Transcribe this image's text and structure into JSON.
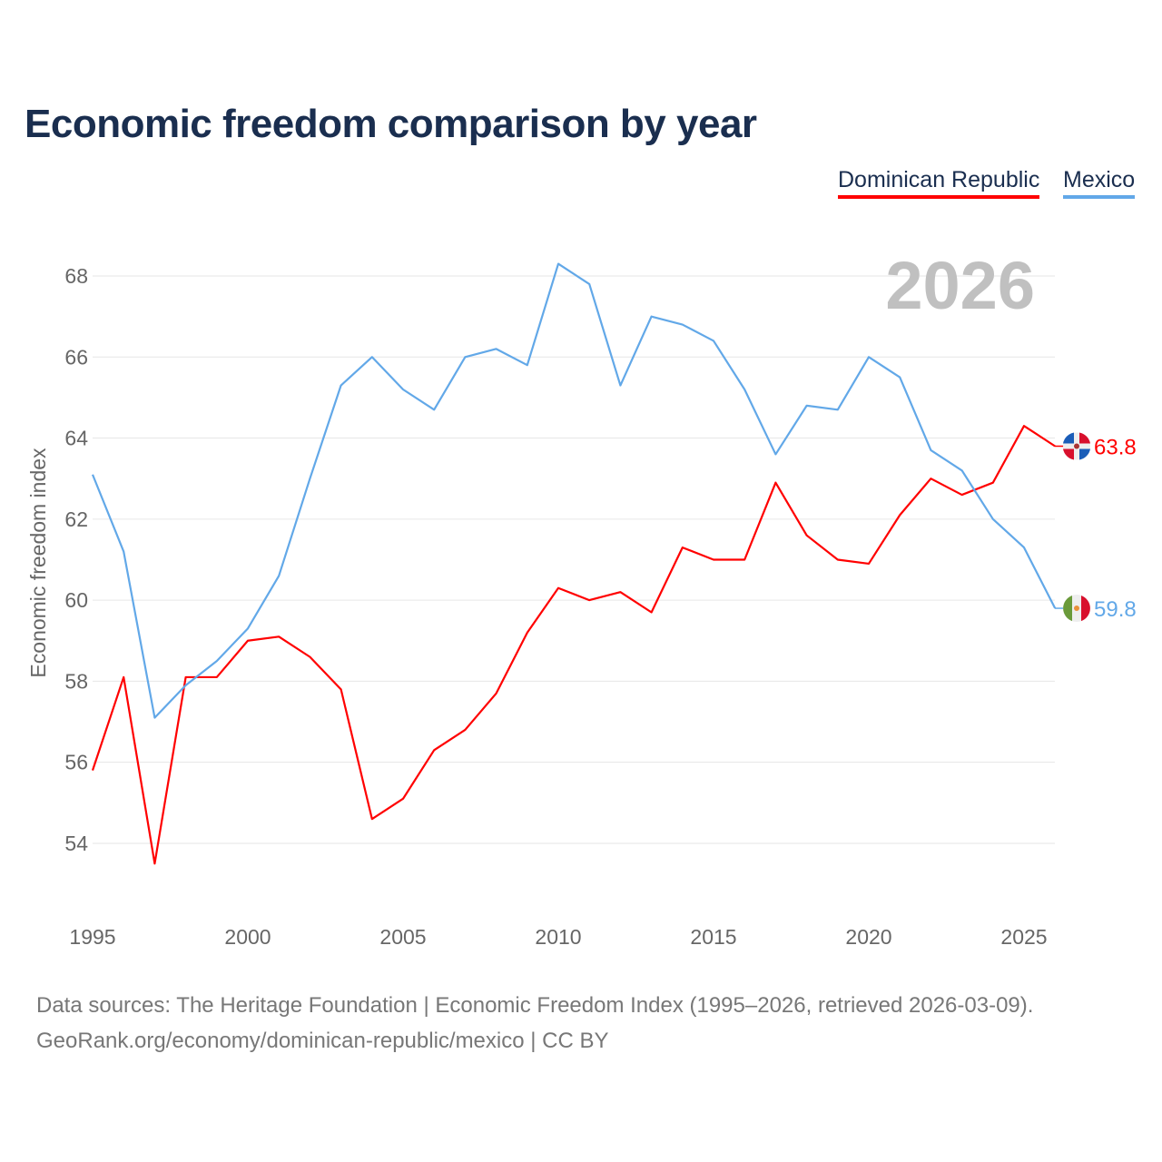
{
  "chart_data": {
    "type": "line",
    "title": "Economic freedom comparison by year",
    "ylabel": "Economic freedom index",
    "xlabel": "",
    "year_watermark": "2026",
    "ylim": [
      52.5,
      69
    ],
    "xlim": [
      1995,
      2026
    ],
    "yticks": [
      54,
      56,
      58,
      60,
      62,
      64,
      66,
      68
    ],
    "xticks": [
      1995,
      2000,
      2005,
      2010,
      2015,
      2020,
      2025
    ],
    "grid": true,
    "legend_position": "top-right",
    "x": [
      1995,
      1996,
      1997,
      1998,
      1999,
      2000,
      2001,
      2002,
      2003,
      2004,
      2005,
      2006,
      2007,
      2008,
      2009,
      2010,
      2011,
      2012,
      2013,
      2014,
      2015,
      2016,
      2017,
      2018,
      2019,
      2020,
      2021,
      2022,
      2023,
      2024,
      2025,
      2026
    ],
    "series": [
      {
        "name": "Dominican Republic",
        "color": "#ff0000",
        "end_label": "63.8",
        "values": [
          55.8,
          58.1,
          53.5,
          58.1,
          58.1,
          59.0,
          59.1,
          58.6,
          57.8,
          54.6,
          55.1,
          56.3,
          56.8,
          57.7,
          59.2,
          60.3,
          60.0,
          60.2,
          59.7,
          61.3,
          61.0,
          61.0,
          62.9,
          61.6,
          61.0,
          60.9,
          62.1,
          63.0,
          62.6,
          62.9,
          64.3,
          63.8
        ]
      },
      {
        "name": "Mexico",
        "color": "#62a8e8",
        "end_label": "59.8",
        "values": [
          63.1,
          61.2,
          57.1,
          57.9,
          58.5,
          59.3,
          60.6,
          63.0,
          65.3,
          66.0,
          65.2,
          64.7,
          66.0,
          66.2,
          65.8,
          68.3,
          67.8,
          65.3,
          67.0,
          66.8,
          66.4,
          65.2,
          63.6,
          64.8,
          64.7,
          66.0,
          65.5,
          63.7,
          63.2,
          62.0,
          61.3,
          59.8
        ]
      }
    ]
  },
  "footer": {
    "line1": "Data sources: The Heritage Foundation | Economic Freedom Index (1995–2026, retrieved 2026-03-09).",
    "line2": "GeoRank.org/economy/dominican-republic/mexico | CC BY"
  }
}
